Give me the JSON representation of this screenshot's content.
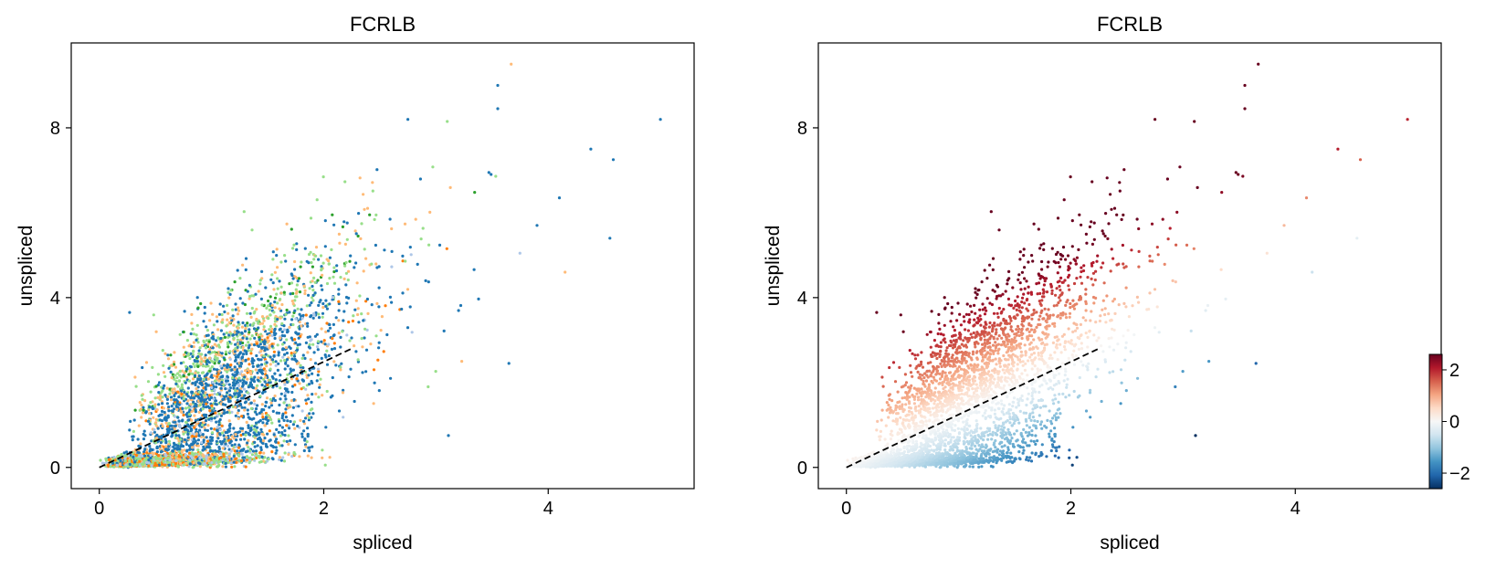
{
  "chart_data": [
    {
      "type": "scatter",
      "title": "FCRLB",
      "xlabel": "spliced",
      "ylabel": "unspliced",
      "xlim": [
        -0.25,
        5.3
      ],
      "ylim": [
        -0.5,
        10.0
      ],
      "xticks": [
        {
          "value": 0,
          "label": "0"
        },
        {
          "value": 2,
          "label": "2"
        },
        {
          "value": 4,
          "label": "4"
        }
      ],
      "yticks": [
        {
          "value": 0,
          "label": "0"
        },
        {
          "value": 4,
          "label": "4"
        },
        {
          "value": 8,
          "label": "8"
        }
      ],
      "coloring": "categorical clusters",
      "cluster_colors": [
        "#1f77b4",
        "#aec7e8",
        "#ff7f0e",
        "#ffbb78",
        "#98df8a",
        "#2ca02c"
      ],
      "fit_line": {
        "style": "dashed",
        "color": "#000000",
        "x": [
          0,
          2.25
        ],
        "y": [
          0,
          2.8
        ]
      },
      "n_points_approx": 4000,
      "notable_points": [
        {
          "x": 5.0,
          "y": 8.2
        },
        {
          "x": 3.67,
          "y": 9.5
        },
        {
          "x": 3.55,
          "y": 8.45
        },
        {
          "x": 3.55,
          "y": 9.0
        },
        {
          "x": 4.38,
          "y": 7.5
        },
        {
          "x": 4.58,
          "y": 7.25
        },
        {
          "x": 4.55,
          "y": 5.4
        },
        {
          "x": 4.1,
          "y": 6.35
        },
        {
          "x": 4.15,
          "y": 4.6
        },
        {
          "x": 3.65,
          "y": 2.45
        },
        {
          "x": 2.93,
          "y": 1.9
        },
        {
          "x": 3.23,
          "y": 2.5
        },
        {
          "x": 2.75,
          "y": 8.2
        },
        {
          "x": 3.1,
          "y": 8.15
        },
        {
          "x": 3.9,
          "y": 5.7
        },
        {
          "x": 0.27,
          "y": 3.65
        }
      ]
    },
    {
      "type": "scatter",
      "title": "FCRLB",
      "xlabel": "spliced",
      "ylabel": "unspliced",
      "xlim": [
        -0.25,
        5.3
      ],
      "ylim": [
        -0.5,
        10.0
      ],
      "xticks": [
        {
          "value": 0,
          "label": "0"
        },
        {
          "value": 2,
          "label": "2"
        },
        {
          "value": 4,
          "label": "4"
        }
      ],
      "yticks": [
        {
          "value": 0,
          "label": "0"
        },
        {
          "value": 4,
          "label": "4"
        },
        {
          "value": 8,
          "label": "8"
        }
      ],
      "coloring": "residual (unspliced minus fit), diverging colormap",
      "fit_line": {
        "style": "dashed",
        "color": "#000000",
        "x": [
          0,
          2.25
        ],
        "y": [
          0,
          2.8
        ]
      },
      "colorbar": {
        "range": [
          -2.6,
          2.6
        ],
        "ticks": [
          {
            "value": -2,
            "label": "−2"
          },
          {
            "value": 0,
            "label": "0"
          },
          {
            "value": 2,
            "label": "2"
          }
        ],
        "colors": [
          "#053061",
          "#2166ac",
          "#4393c3",
          "#92c5de",
          "#d1e5f0",
          "#f7f7f7",
          "#fddbc7",
          "#f4a582",
          "#d6604d",
          "#b2182b",
          "#67001f"
        ]
      },
      "n_points_approx": 4000,
      "notable_points": [
        {
          "x": 5.0,
          "y": 8.2
        },
        {
          "x": 3.67,
          "y": 9.5
        },
        {
          "x": 3.55,
          "y": 8.45
        },
        {
          "x": 3.55,
          "y": 9.0
        },
        {
          "x": 4.38,
          "y": 7.5
        },
        {
          "x": 4.58,
          "y": 7.25
        },
        {
          "x": 4.55,
          "y": 5.4
        },
        {
          "x": 4.1,
          "y": 6.35
        },
        {
          "x": 4.15,
          "y": 4.6
        },
        {
          "x": 3.65,
          "y": 2.45
        },
        {
          "x": 2.93,
          "y": 1.9
        },
        {
          "x": 3.23,
          "y": 2.5
        },
        {
          "x": 2.75,
          "y": 8.2
        },
        {
          "x": 3.1,
          "y": 8.15
        },
        {
          "x": 3.9,
          "y": 5.7
        },
        {
          "x": 0.27,
          "y": 3.65
        }
      ]
    }
  ]
}
